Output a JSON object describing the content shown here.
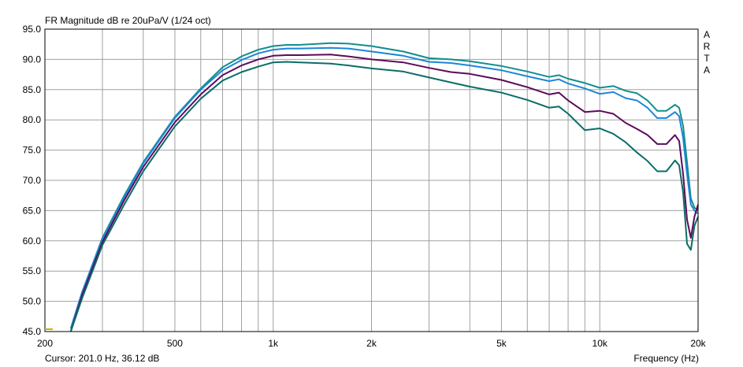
{
  "header": {
    "title": "FR Magnitude dB re 20uPa/V (1/24 oct)",
    "brand_letters": [
      "A",
      "R",
      "T",
      "A"
    ]
  },
  "footer": {
    "cursor": "Cursor: 201.0 Hz, 36.12 dB",
    "xlabel": "Frequency (Hz)"
  },
  "colors": {
    "series": [
      "#128e8e",
      "#1e86d6",
      "#5c0a5c",
      "#0a6d66"
    ],
    "grid": "#a0a0a0",
    "marker": "#c8b400"
  },
  "chart_data": {
    "type": "line",
    "title": "FR Magnitude dB re 20uPa/V (1/24 oct)",
    "xlabel": "Frequency (Hz)",
    "ylabel": "",
    "x_scale": "log",
    "xlim": [
      200,
      20000
    ],
    "ylim": [
      45,
      95
    ],
    "grid": true,
    "x_ticks": [
      200,
      500,
      1000,
      2000,
      5000,
      10000,
      20000
    ],
    "x_tick_labels": [
      "200",
      "500",
      "1k",
      "2k",
      "5k",
      "10k",
      "20k"
    ],
    "y_ticks": [
      45,
      50,
      55,
      60,
      65,
      70,
      75,
      80,
      85,
      90,
      95
    ],
    "y_tick_labels": [
      "45.0",
      "50.0",
      "55.0",
      "60.0",
      "65.0",
      "70.0",
      "75.0",
      "80.0",
      "85.0",
      "90.0",
      "95.0"
    ],
    "series": [
      {
        "x": [
          240,
          260,
          300,
          350,
          400,
          500,
          600,
          700,
          800,
          900,
          1000,
          1100,
          1200,
          1500,
          1700,
          2000,
          2500,
          3000,
          3500,
          4000,
          5000,
          6000,
          7000,
          7500,
          8000,
          9000,
          10000,
          11000,
          12000,
          13000,
          14000,
          15000,
          16000,
          17000,
          17500,
          18000,
          18500,
          19000,
          19500,
          20000
        ],
        "values": [
          45.5,
          51.5,
          60.5,
          67.5,
          73.0,
          80.5,
          85.2,
          88.7,
          90.5,
          91.6,
          92.2,
          92.4,
          92.4,
          92.7,
          92.6,
          92.2,
          91.3,
          90.2,
          90.0,
          89.7,
          88.9,
          88.0,
          87.1,
          87.4,
          86.8,
          86.1,
          85.3,
          85.6,
          84.8,
          84.4,
          83.2,
          81.5,
          81.5,
          82.5,
          82.0,
          79.0,
          73.0,
          67.0,
          65.5,
          65.0
        ]
      },
      {
        "x": [
          240,
          260,
          300,
          350,
          400,
          500,
          600,
          700,
          800,
          900,
          1000,
          1100,
          1200,
          1500,
          1700,
          2000,
          2500,
          3000,
          3500,
          4000,
          5000,
          6000,
          7000,
          7500,
          8000,
          9000,
          10000,
          11000,
          12000,
          13000,
          14000,
          15000,
          16000,
          17000,
          17500,
          18000,
          18500,
          19000,
          19500,
          20000
        ],
        "values": [
          45.5,
          51.5,
          60.3,
          67.2,
          72.8,
          80.3,
          85.0,
          88.2,
          89.9,
          91.0,
          91.6,
          91.8,
          91.8,
          91.9,
          91.8,
          91.3,
          90.6,
          89.6,
          89.4,
          89.0,
          88.2,
          87.2,
          86.4,
          86.7,
          86.0,
          85.2,
          84.3,
          84.6,
          83.6,
          83.2,
          82.0,
          80.3,
          80.3,
          81.3,
          80.6,
          77.0,
          71.0,
          66.0,
          65.0,
          64.5
        ]
      },
      {
        "x": [
          240,
          260,
          300,
          350,
          400,
          500,
          600,
          700,
          800,
          900,
          1000,
          1100,
          1200,
          1500,
          1700,
          2000,
          2500,
          3000,
          3500,
          4000,
          5000,
          6000,
          7000,
          7500,
          8000,
          9000,
          10000,
          11000,
          12000,
          13000,
          14000,
          15000,
          16000,
          17000,
          17500,
          18000,
          18500,
          19000,
          19500,
          20000
        ],
        "values": [
          45.0,
          51.0,
          59.8,
          66.7,
          72.2,
          79.6,
          84.2,
          87.4,
          89.0,
          90.0,
          90.6,
          90.7,
          90.7,
          90.8,
          90.5,
          90.0,
          89.5,
          88.6,
          87.9,
          87.6,
          86.6,
          85.4,
          84.2,
          84.5,
          83.2,
          81.3,
          81.5,
          81.0,
          79.5,
          78.5,
          77.5,
          76.0,
          76.0,
          77.5,
          76.5,
          71.0,
          63.5,
          60.5,
          64.0,
          66.0
        ]
      },
      {
        "x": [
          240,
          260,
          300,
          350,
          400,
          500,
          600,
          700,
          800,
          900,
          1000,
          1100,
          1200,
          1500,
          1700,
          2000,
          2500,
          3000,
          3500,
          4000,
          5000,
          6000,
          7000,
          7500,
          8000,
          9000,
          10000,
          11000,
          12000,
          13000,
          14000,
          15000,
          16000,
          17000,
          17500,
          18000,
          18500,
          19000,
          19500,
          20000
        ],
        "values": [
          44.8,
          50.5,
          59.3,
          66.0,
          71.5,
          78.9,
          83.5,
          86.5,
          87.9,
          88.8,
          89.5,
          89.6,
          89.5,
          89.3,
          89.0,
          88.5,
          88.0,
          87.0,
          86.2,
          85.5,
          84.5,
          83.3,
          82.0,
          82.2,
          81.0,
          78.3,
          78.6,
          77.7,
          76.3,
          74.6,
          73.2,
          71.5,
          71.5,
          73.3,
          72.5,
          68.0,
          59.5,
          58.5,
          62.5,
          64.0
        ]
      }
    ]
  }
}
